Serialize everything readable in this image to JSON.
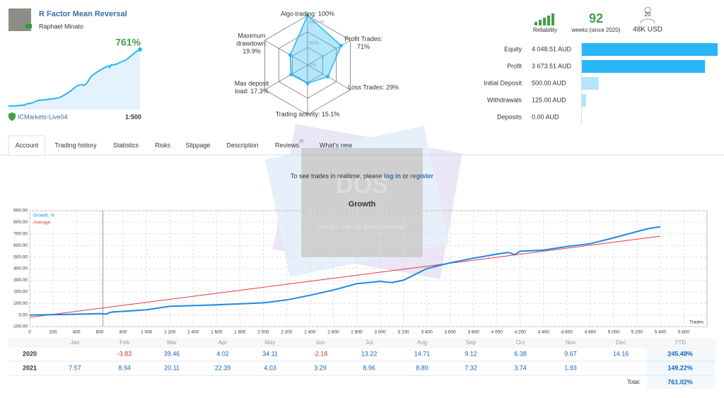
{
  "header": {
    "title": "R Factor Mean Reversal",
    "author": "Raphael Minato",
    "growth": "761%",
    "broker": "ICMarkets-Live04",
    "leverage": "1:500"
  },
  "radar": {
    "axes": [
      {
        "label": [
          "Algo trading: 100%"
        ],
        "value": 100
      },
      {
        "label": [
          "Profit Trades:",
          "71%"
        ],
        "value": 71
      },
      {
        "label": [
          "Loss Trades: 29%"
        ],
        "value": 29
      },
      {
        "label": [
          "Trading activity: 15.1%"
        ],
        "value": 15.1
      },
      {
        "label": [
          "Max deposit",
          "load: 17.3%"
        ],
        "value": 17.3
      },
      {
        "label": [
          "Maximum",
          "drawdown:",
          "19.9%"
        ],
        "value": 19.9
      }
    ],
    "rings": [
      "100+%",
      "50%",
      "0%"
    ]
  },
  "stats": {
    "reliability": "Reliability",
    "weeks": "92",
    "weeks_label": "weeks (since 2020)",
    "subscribers": "20",
    "funds": "48K USD"
  },
  "balance": [
    {
      "label": "Equity",
      "value": 4048.51,
      "value_label": "4 048.51 AUD"
    },
    {
      "label": "Profit",
      "value": 3673.51,
      "value_label": "3 673.51 AUD"
    },
    {
      "label": "Initial Deposit",
      "value": 500,
      "value_label": "500.00 AUD"
    },
    {
      "label": "Withdrawals",
      "value": 125,
      "value_label": "125.00 AUD"
    },
    {
      "label": "Deposits",
      "value": 0,
      "value_label": "0.00 AUD"
    }
  ],
  "tabs": [
    "Account",
    "Trading history",
    "Statistics",
    "Risks",
    "Slippage",
    "Description",
    "Reviews",
    "What's new"
  ],
  "reviews_count": "10",
  "notice": {
    "before": "To see trades in realtime, please ",
    "login": "log in",
    "middle": " or ",
    "register": "register"
  },
  "watermark": {
    "logo": "DOS",
    "text": "DIGITAL ONLINE SUPERMARKET"
  },
  "chart_data": {
    "type": "line",
    "title": "Growth",
    "x_label": "Trades",
    "xlim": [
      0,
      5800
    ],
    "ylim": [
      -100,
      900
    ],
    "xticks": [
      0,
      200,
      400,
      600,
      800,
      {
        "value": 1000,
        "label": "1 000"
      },
      {
        "value": 1200,
        "label": "1 200"
      },
      {
        "value": 1400,
        "label": "1 400"
      },
      {
        "value": 1600,
        "label": "1 600"
      },
      {
        "value": 1800,
        "label": "1 800"
      },
      {
        "value": 2000,
        "label": "2 000"
      },
      {
        "value": 2200,
        "label": "2 200"
      },
      {
        "value": 2400,
        "label": "2 400"
      },
      {
        "value": 2600,
        "label": "2 600"
      },
      {
        "value": 2800,
        "label": "2 800"
      },
      {
        "value": 3000,
        "label": "3 000"
      },
      {
        "value": 3200,
        "label": "3 200"
      },
      {
        "value": 3400,
        "label": "3 400"
      },
      {
        "value": 3600,
        "label": "3 600"
      },
      {
        "value": 3800,
        "label": "3 800"
      },
      {
        "value": 4000,
        "label": "4 000"
      },
      {
        "value": 4200,
        "label": "4 200"
      },
      {
        "value": 4400,
        "label": "4 400"
      },
      {
        "value": 4600,
        "label": "4 600"
      },
      {
        "value": 4800,
        "label": "4 800"
      },
      {
        "value": 5000,
        "label": "5 000"
      },
      {
        "value": 5200,
        "label": "5 200"
      },
      {
        "value": 5400,
        "label": "5 400"
      },
      {
        "value": 5600,
        "label": "5 600"
      }
    ],
    "yticks": [
      {
        "value": -100,
        "label": "-100.00"
      },
      {
        "value": 0,
        "label": "0.00"
      },
      {
        "value": 100,
        "label": "100.00"
      },
      {
        "value": 200,
        "label": "200.00"
      },
      {
        "value": 300,
        "label": "300.00"
      },
      {
        "value": 400,
        "label": "400.00"
      },
      {
        "value": 500,
        "label": "500.00"
      },
      {
        "value": 600,
        "label": "600.00"
      },
      {
        "value": 700,
        "label": "700.00"
      },
      {
        "value": 800,
        "label": "800.00"
      },
      {
        "value": 900,
        "label": "900.00"
      }
    ],
    "grid": true,
    "series": [
      {
        "name": "Growth, %",
        "color": "#1e88e5",
        "x": [
          0,
          300,
          600,
          650,
          700,
          1000,
          1200,
          1600,
          2000,
          2200,
          2400,
          2600,
          2800,
          3000,
          3100,
          3200,
          3300,
          3400,
          3600,
          3800,
          4000,
          4100,
          4150,
          4200,
          4400,
          4600,
          4800,
          5000,
          5200,
          5300,
          5400
        ],
        "values": [
          0,
          4,
          12,
          8,
          25,
          45,
          75,
          88,
          105,
          130,
          170,
          215,
          270,
          290,
          280,
          300,
          350,
          400,
          450,
          490,
          525,
          540,
          520,
          550,
          560,
          590,
          615,
          665,
          720,
          745,
          761
        ]
      },
      {
        "name": "Average",
        "color": "#e53935",
        "x": [
          0,
          5400
        ],
        "values": [
          -20,
          680
        ]
      }
    ]
  },
  "table": {
    "columns": [
      "Jan",
      "Feb",
      "Mar",
      "Apr",
      "May",
      "Jun",
      "Jul",
      "Aug",
      "Sep",
      "Oct",
      "Nov",
      "Dec",
      "YTD"
    ],
    "rows": [
      {
        "year": "2020",
        "values": [
          null,
          -3.83,
          39.46,
          4.02,
          34.11,
          -2.18,
          13.22,
          14.71,
          9.12,
          6.38,
          9.67,
          14.16
        ],
        "ytd": "245.48%"
      },
      {
        "year": "2021",
        "values": [
          7.57,
          8.94,
          20.11,
          22.39,
          4.03,
          3.29,
          8.96,
          8.89,
          7.32,
          3.74,
          1.93,
          null
        ],
        "ytd": "149.22%"
      }
    ],
    "total_label": "Total:",
    "total": "761.02%"
  }
}
